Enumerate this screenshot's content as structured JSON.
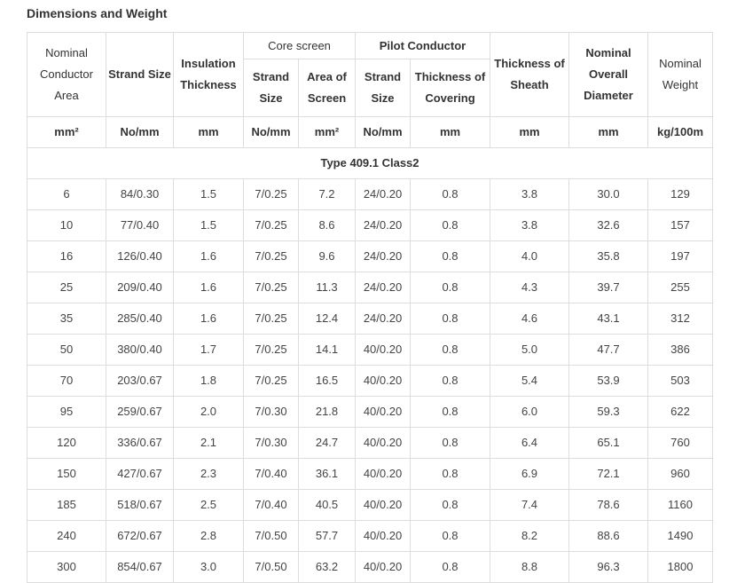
{
  "section_title": "Dimensions and Weight",
  "headers": {
    "nominal_conductor_area": "Nominal Conductor Area",
    "strand_size": "Strand Size",
    "insulation_thickness": "Insulation Thickness",
    "core_screen": "Core screen",
    "core_strand_size": "Strand Size",
    "core_area_of_screen": "Area of Screen",
    "pilot_conductor": "Pilot Conductor",
    "pilot_strand_size": "Strand Size",
    "pilot_thickness_of_covering": "Thickness of Covering",
    "thickness_of_sheath": "Thickness of Sheath",
    "nominal_overall_diameter": "Nominal Overall Diameter",
    "nominal_weight": "Nominal Weight"
  },
  "units": [
    "mm²",
    "No/mm",
    "mm",
    "No/mm",
    "mm²",
    "No/mm",
    "mm",
    "mm",
    "mm",
    "kg/100m"
  ],
  "group_label": "Type 409.1 Class2",
  "rows": [
    [
      "6",
      "84/0.30",
      "1.5",
      "7/0.25",
      "7.2",
      "24/0.20",
      "0.8",
      "3.8",
      "30.0",
      "129"
    ],
    [
      "10",
      "77/0.40",
      "1.5",
      "7/0.25",
      "8.6",
      "24/0.20",
      "0.8",
      "3.8",
      "32.6",
      "157"
    ],
    [
      "16",
      "126/0.40",
      "1.6",
      "7/0.25",
      "9.6",
      "24/0.20",
      "0.8",
      "4.0",
      "35.8",
      "197"
    ],
    [
      "25",
      "209/0.40",
      "1.6",
      "7/0.25",
      "11.3",
      "24/0.20",
      "0.8",
      "4.3",
      "39.7",
      "255"
    ],
    [
      "35",
      "285/0.40",
      "1.6",
      "7/0.25",
      "12.4",
      "24/0.20",
      "0.8",
      "4.6",
      "43.1",
      "312"
    ],
    [
      "50",
      "380/0.40",
      "1.7",
      "7/0.25",
      "14.1",
      "40/0.20",
      "0.8",
      "5.0",
      "47.7",
      "386"
    ],
    [
      "70",
      "203/0.67",
      "1.8",
      "7/0.25",
      "16.5",
      "40/0.20",
      "0.8",
      "5.4",
      "53.9",
      "503"
    ],
    [
      "95",
      "259/0.67",
      "2.0",
      "7/0.30",
      "21.8",
      "40/0.20",
      "0.8",
      "6.0",
      "59.3",
      "622"
    ],
    [
      "120",
      "336/0.67",
      "2.1",
      "7/0.30",
      "24.7",
      "40/0.20",
      "0.8",
      "6.4",
      "65.1",
      "760"
    ],
    [
      "150",
      "427/0.67",
      "2.3",
      "7/0.40",
      "36.1",
      "40/0.20",
      "0.8",
      "6.9",
      "72.1",
      "960"
    ],
    [
      "185",
      "518/0.67",
      "2.5",
      "7/0.40",
      "40.5",
      "40/0.20",
      "0.8",
      "7.4",
      "78.6",
      "1160"
    ],
    [
      "240",
      "672/0.67",
      "2.8",
      "7/0.50",
      "57.7",
      "40/0.20",
      "0.8",
      "8.2",
      "88.6",
      "1490"
    ],
    [
      "300",
      "854/0.67",
      "3.0",
      "7/0.50",
      "63.2",
      "40/0.20",
      "0.8",
      "8.8",
      "96.3",
      "1800"
    ]
  ]
}
